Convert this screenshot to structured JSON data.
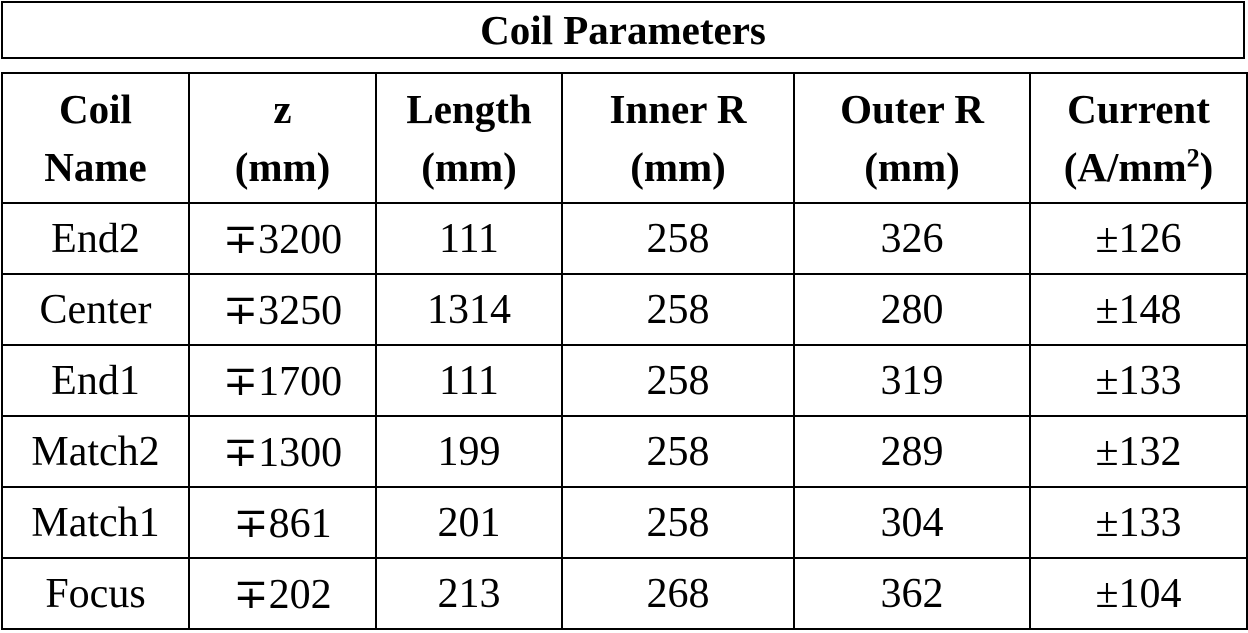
{
  "title": "Coil Parameters",
  "columns": [
    {
      "line1": "Coil",
      "line2": "Name",
      "sup": ""
    },
    {
      "line1": "z",
      "line2": "(mm)",
      "sup": ""
    },
    {
      "line1": "Length",
      "line2": "(mm)",
      "sup": ""
    },
    {
      "line1": "Inner R",
      "line2": "(mm)",
      "sup": ""
    },
    {
      "line1": "Outer R",
      "line2": "(mm)",
      "sup": ""
    },
    {
      "line1": "Current",
      "line2": "(A/mm",
      "sup": "2",
      "line2_end": ")"
    }
  ],
  "rows": [
    [
      "End2",
      "∓3200",
      "111",
      "258",
      "326",
      "±126"
    ],
    [
      "Center",
      "∓3250",
      "1314",
      "258",
      "280",
      "±148"
    ],
    [
      "End1",
      "∓1700",
      "111",
      "258",
      "319",
      "±133"
    ],
    [
      "Match2",
      "∓1300",
      "199",
      "258",
      "289",
      "±132"
    ],
    [
      "Match1",
      "∓861",
      "201",
      "258",
      "304",
      "±133"
    ],
    [
      "Focus",
      "∓202",
      "213",
      "268",
      "362",
      "±104"
    ]
  ]
}
